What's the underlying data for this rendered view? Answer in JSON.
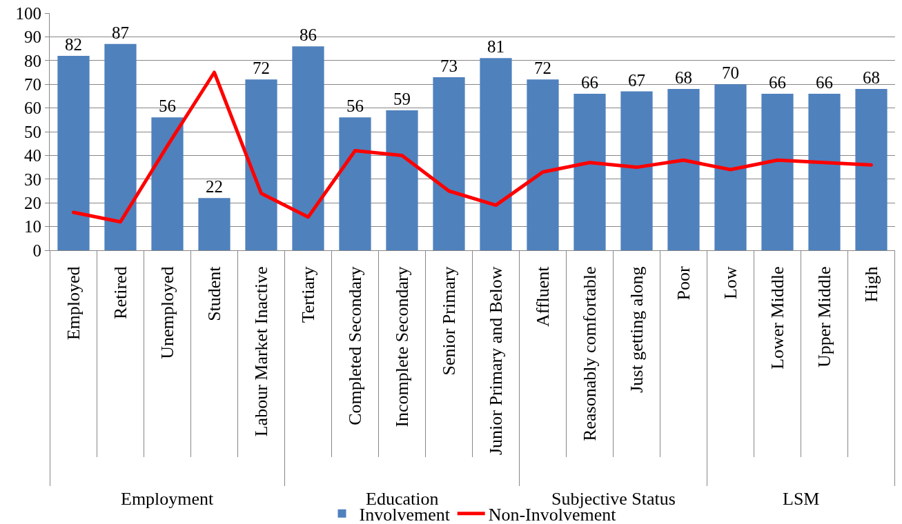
{
  "chart_data": {
    "type": "bar",
    "categories": [
      "Employed",
      "Retired",
      "Unemployed",
      "Student",
      "Labour Market Inactive",
      "Tertiary",
      "Completed Secondary",
      "Incomplete Secondary",
      "Senior Primary",
      "Junior Primary and Below",
      "Affluent",
      "Reasonably comfortable",
      "Just getting along",
      "Poor",
      "Low",
      "Lower Middle",
      "Upper Middle",
      "High"
    ],
    "series": [
      {
        "name": "Involvement",
        "color": "#4f81bd",
        "values": [
          82,
          87,
          56,
          22,
          72,
          86,
          56,
          59,
          73,
          81,
          72,
          66,
          67,
          68,
          70,
          66,
          66,
          68
        ],
        "value_labels": [
          "82",
          "87",
          "56",
          "22",
          "72",
          "86",
          "56",
          "59",
          "73",
          "81",
          "72",
          "66",
          "67",
          "68",
          "70",
          "66",
          "66",
          "68"
        ]
      },
      {
        "name": "Non-Involvement",
        "type": "line",
        "color": "#ff0000",
        "values": [
          16,
          12,
          44,
          75,
          24,
          14,
          42,
          40,
          25,
          19,
          33,
          37,
          35,
          38,
          34,
          38,
          37,
          36
        ]
      }
    ],
    "ylim": [
      0,
      100
    ],
    "yticks": [
      0,
      10,
      20,
      30,
      40,
      50,
      60,
      70,
      80,
      90,
      100
    ],
    "grid": "y",
    "legend": "bottom",
    "annotations": [
      "Employment",
      "Education",
      "Subjective Status",
      "LSM"
    ]
  }
}
